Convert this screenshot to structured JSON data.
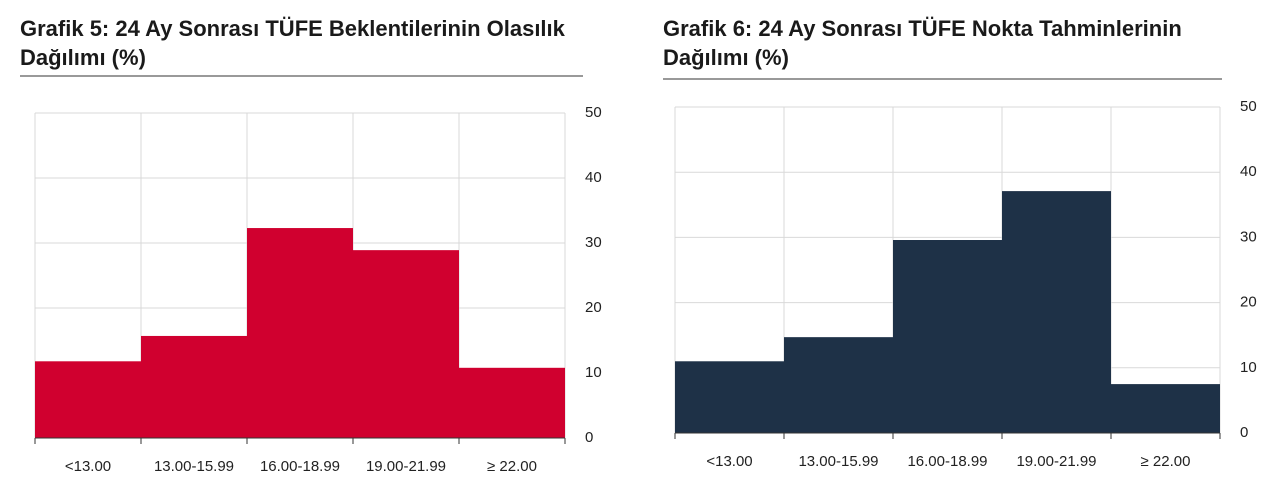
{
  "chart_data": [
    {
      "type": "bar",
      "title": "Grafik 5: 24 Ay Sonrası TÜFE Beklentilerinin Olasılık Dağılımı (%)",
      "categories": [
        "<13.00",
        "13.00-15.99",
        "16.00-18.99",
        "19.00-21.99",
        "≥ 22.00"
      ],
      "values": [
        11.8,
        15.7,
        32.3,
        28.9,
        10.8
      ],
      "color": "#d0002f",
      "ylim": [
        0,
        50
      ],
      "yticks": [
        0,
        10,
        20,
        30,
        40,
        50
      ],
      "grid": true
    },
    {
      "type": "bar",
      "title": "Grafik 6: 24 Ay Sonrası TÜFE Nokta Tahminlerinin Dağılımı (%)",
      "categories": [
        "<13.00",
        "13.00-15.99",
        "16.00-18.99",
        "19.00-21.99",
        "≥ 22.00"
      ],
      "values": [
        11.0,
        14.7,
        29.6,
        37.1,
        7.5
      ],
      "color": "#1e3147",
      "ylim": [
        0,
        50
      ],
      "yticks": [
        0,
        10,
        20,
        30,
        40,
        50
      ],
      "grid": true
    }
  ]
}
